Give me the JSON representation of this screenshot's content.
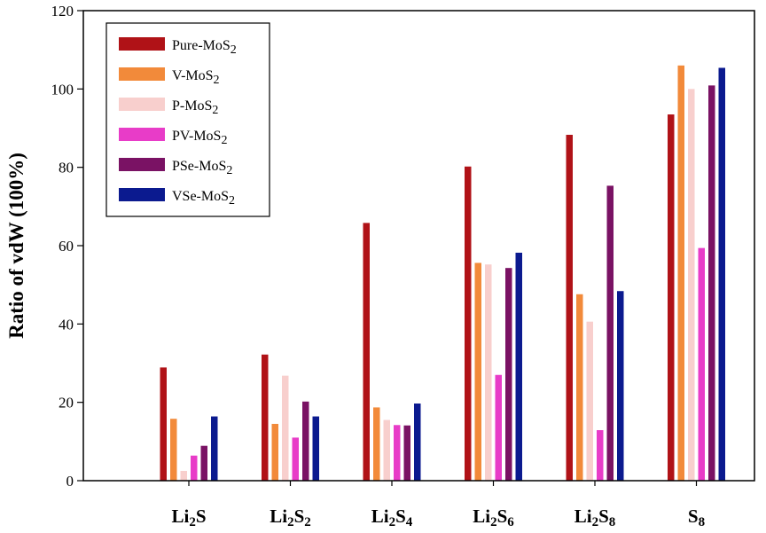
{
  "chart_data": {
    "type": "bar",
    "title": "",
    "xlabel": "",
    "ylabel": "Ratio of vdW (100%)",
    "ylim": [
      0,
      120
    ],
    "yticks": [
      0,
      20,
      40,
      60,
      80,
      100,
      120
    ],
    "grid": false,
    "legend_position": "top-left",
    "categories": [
      {
        "base": "Li",
        "sub": "2",
        "base2": "S",
        "sub2": ""
      },
      {
        "base": "Li",
        "sub": "2",
        "base2": "S",
        "sub2": "2"
      },
      {
        "base": "Li",
        "sub": "2",
        "base2": "S",
        "sub2": "4"
      },
      {
        "base": "Li",
        "sub": "2",
        "base2": "S",
        "sub2": "6"
      },
      {
        "base": "Li",
        "sub": "2",
        "base2": "S",
        "sub2": "8"
      },
      {
        "base": "S",
        "sub": "8",
        "base2": "",
        "sub2": ""
      }
    ],
    "series": [
      {
        "name": "Pure-MoS",
        "name_sub": "2",
        "color": "#b01217",
        "values": [
          28.9,
          32.2,
          65.8,
          80.2,
          88.3,
          93.5
        ]
      },
      {
        "name": "V-MoS",
        "name_sub": "2",
        "color": "#f28a3a",
        "values": [
          15.8,
          14.5,
          18.7,
          55.6,
          47.6,
          106.0
        ]
      },
      {
        "name": "P-MoS",
        "name_sub": "2",
        "color": "#f8cfcd",
        "values": [
          2.5,
          26.8,
          15.5,
          55.2,
          40.6,
          100.0
        ]
      },
      {
        "name": "PV-MoS",
        "name_sub": "2",
        "color": "#e83cc8",
        "values": [
          6.4,
          11.0,
          14.2,
          27.0,
          12.9,
          59.4
        ]
      },
      {
        "name": "PSe-MoS",
        "name_sub": "2",
        "color": "#7a1264",
        "values": [
          8.9,
          20.2,
          14.1,
          54.3,
          75.3,
          100.9
        ]
      },
      {
        "name": "VSe-MoS",
        "name_sub": "2",
        "color": "#0b1a8f",
        "values": [
          16.4,
          16.4,
          19.7,
          58.2,
          48.4,
          105.4
        ]
      }
    ]
  }
}
